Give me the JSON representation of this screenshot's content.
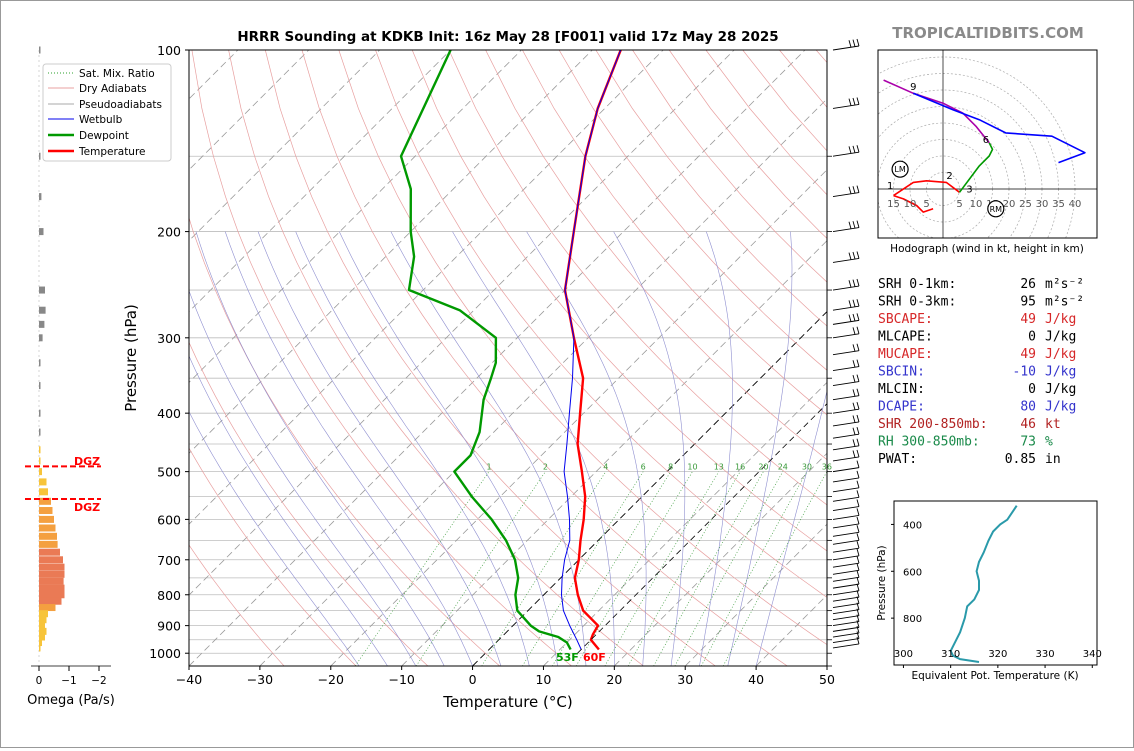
{
  "brand": "TROPICALTIDBITS.COM",
  "title": "HRRR Sounding at KDKB Init: 16z May 28 [F001] valid 17z May 28 2025",
  "skewt": {
    "xlabel": "Temperature (°C)",
    "ylabel": "Pressure (hPa)",
    "xticks": [
      -40,
      -30,
      -20,
      -10,
      0,
      10,
      20,
      30,
      40,
      50
    ],
    "yticks": [
      100,
      200,
      300,
      400,
      500,
      600,
      700,
      800,
      900,
      1000
    ],
    "mixing_ratio_labels": [
      "1",
      "2",
      "4",
      "6",
      "8",
      "10",
      "13",
      "16",
      "20",
      "24",
      "30",
      "36"
    ],
    "surface_dewpoint_label": "53F",
    "surface_temp_label": "60F",
    "legend": [
      "Sat. Mix. Ratio",
      "Dry Adiabats",
      "Pseudoadiabats",
      "Wetbulb",
      "Dewpoint",
      "Temperature"
    ]
  },
  "omega": {
    "xlabel": "Omega (Pa/s)",
    "xticks": [
      "0",
      "−1",
      "−2"
    ],
    "dgz_label": "DGZ"
  },
  "hodograph": {
    "caption": "Hodograph (wind in kt, height in km)",
    "ring_labels": [
      "15",
      "10",
      "5",
      "5",
      "10",
      "15",
      "20",
      "25",
      "30",
      "35",
      "40"
    ],
    "height_labels": [
      "1",
      "2",
      "3",
      "6",
      "9"
    ],
    "lm": "LM",
    "rm": "RM"
  },
  "indices": [
    {
      "label": "SRH 0-1km:",
      "value": "26",
      "unit": "m²s⁻²",
      "color": "#000000"
    },
    {
      "label": "SRH 0-3km:",
      "value": "95",
      "unit": "m²s⁻²",
      "color": "#000000"
    },
    {
      "label": "SBCAPE:",
      "value": "49",
      "unit": "J/kg",
      "color": "#d62728"
    },
    {
      "label": "MLCAPE:",
      "value": "0",
      "unit": "J/kg",
      "color": "#000000"
    },
    {
      "label": "MUCAPE:",
      "value": "49",
      "unit": "J/kg",
      "color": "#d62728"
    },
    {
      "label": "SBCIN:",
      "value": "-10",
      "unit": "J/kg",
      "color": "#3333cc"
    },
    {
      "label": "MLCIN:",
      "value": "0",
      "unit": "J/kg",
      "color": "#000000"
    },
    {
      "label": "DCAPE:",
      "value": "80",
      "unit": "J/kg",
      "color": "#3333cc"
    },
    {
      "label": "SHR 200-850mb:",
      "value": "46",
      "unit": "kt",
      "color": "#b22222"
    },
    {
      "label": "RH 300-850mb:",
      "value": "73",
      "unit": "%",
      "color": "#1a8a4a"
    },
    {
      "label": "PWAT:",
      "value": "0.85",
      "unit": "in",
      "color": "#000000"
    }
  ],
  "theta_e": {
    "ylabel": "Pressure (hPa)",
    "xlabel": "Equivalent Pot. Temperature (K)",
    "xticks": [
      "300",
      "310",
      "320",
      "330",
      "340"
    ],
    "yticks": [
      "400",
      "600",
      "800"
    ]
  },
  "chart_data": [
    {
      "type": "line",
      "title": "HRRR Sounding at KDKB Init: 16z May 28 [F001] valid 17z May 28 2025",
      "xlabel": "Temperature (°C)",
      "ylabel": "Pressure (hPa)",
      "xlim": [
        -40,
        50
      ],
      "ylim": [
        1050,
        100
      ],
      "yscale": "log",
      "skew": "isotherms skewed 45°",
      "legend_position": "top-left",
      "series": [
        {
          "name": "Temperature",
          "color": "#ff0000",
          "points": [
            [
              986,
              15.5
            ],
            [
              950,
              13
            ],
            [
              930,
              12.5
            ],
            [
              900,
              12
            ],
            [
              870,
              9.5
            ],
            [
              850,
              7.8
            ],
            [
              800,
              4.8
            ],
            [
              750,
              2
            ],
            [
              700,
              0
            ],
            [
              650,
              -2.5
            ],
            [
              600,
              -5
            ],
            [
              550,
              -8
            ],
            [
              500,
              -12
            ],
            [
              450,
              -16.5
            ],
            [
              400,
              -20.5
            ],
            [
              350,
              -25
            ],
            [
              300,
              -32
            ],
            [
              250,
              -40
            ],
            [
              200,
              -47
            ],
            [
              150,
              -56
            ],
            [
              125,
              -61
            ],
            [
              100,
              -66
            ]
          ]
        },
        {
          "name": "Dewpoint",
          "color": "#009900",
          "points": [
            [
              986,
              11.5
            ],
            [
              960,
              10
            ],
            [
              940,
              8
            ],
            [
              920,
              4.5
            ],
            [
              900,
              2.5
            ],
            [
              850,
              -1.5
            ],
            [
              800,
              -4
            ],
            [
              750,
              -6
            ],
            [
              700,
              -9
            ],
            [
              650,
              -13
            ],
            [
              600,
              -18
            ],
            [
              550,
              -24
            ],
            [
              500,
              -30
            ],
            [
              470,
              -30
            ],
            [
              430,
              -32
            ],
            [
              380,
              -36
            ],
            [
              350,
              -38
            ],
            [
              330,
              -39.5
            ],
            [
              300,
              -43
            ],
            [
              270,
              -52
            ],
            [
              250,
              -62
            ],
            [
              220,
              -66
            ],
            [
              200,
              -70
            ],
            [
              170,
              -76
            ],
            [
              150,
              -82
            ],
            [
              100,
              -90
            ]
          ]
        },
        {
          "name": "Wetbulb",
          "color": "#0000ee",
          "points": [
            [
              986,
              13
            ],
            [
              950,
              11
            ],
            [
              900,
              8
            ],
            [
              850,
              5
            ],
            [
              800,
              2.5
            ],
            [
              750,
              0.2
            ],
            [
              700,
              -2
            ],
            [
              650,
              -4
            ],
            [
              600,
              -7
            ],
            [
              550,
              -10.5
            ],
            [
              500,
              -14.5
            ],
            [
              450,
              -18
            ],
            [
              400,
              -22
            ],
            [
              350,
              -26.5
            ],
            [
              300,
              -32
            ],
            [
              250,
              -40
            ],
            [
              200,
              -47
            ],
            [
              150,
              -56
            ],
            [
              125,
              -61
            ],
            [
              100,
              -66
            ]
          ]
        }
      ]
    },
    {
      "type": "bar",
      "title": "",
      "xlabel": "Omega (Pa/s)",
      "ylabel": "Pressure (hPa)",
      "xlim": [
        0,
        -2
      ],
      "orientation": "horizontal",
      "dgz_bounds_hPa": [
        490,
        555
      ],
      "pressures": [
        100,
        150,
        175,
        200,
        250,
        270,
        285,
        300,
        330,
        360,
        400,
        430,
        460,
        480,
        500,
        520,
        540,
        560,
        580,
        600,
        620,
        640,
        660,
        680,
        700,
        720,
        740,
        760,
        780,
        800,
        820,
        840,
        860,
        880,
        900,
        920,
        940,
        960,
        980
      ],
      "values": [
        0.0,
        -0.05,
        -0.08,
        -0.15,
        -0.2,
        -0.22,
        -0.18,
        -0.12,
        -0.05,
        -0.05,
        -0.05,
        0.0,
        0.0,
        -0.05,
        -0.1,
        -0.25,
        -0.3,
        -0.4,
        -0.45,
        -0.5,
        -0.55,
        -0.6,
        -0.62,
        -0.7,
        -0.8,
        -0.85,
        -0.85,
        -0.82,
        -0.85,
        -0.85,
        -0.75,
        -0.55,
        -0.3,
        -0.25,
        -0.2,
        -0.25,
        -0.2,
        -0.1,
        -0.05
      ]
    },
    {
      "type": "line",
      "title": "Hodograph (wind in kt, height in km)",
      "xlabel": "",
      "ylabel": "",
      "rings_kt": [
        5,
        10,
        15,
        20,
        25,
        30,
        35,
        40
      ],
      "series": [
        {
          "name": "0-1 km",
          "color": "#ff0000",
          "points": [
            [
              -3,
              -6
            ],
            [
              -6,
              -7
            ],
            [
              -8,
              -5
            ],
            [
              -12,
              -3
            ],
            [
              -15,
              -2
            ]
          ]
        },
        {
          "name": "1-3 km",
          "color": "#ff0000",
          "points": [
            [
              -15,
              -2
            ],
            [
              -9,
              2
            ],
            [
              -5,
              2.5
            ],
            [
              1,
              2
            ],
            [
              5,
              -1
            ]
          ]
        },
        {
          "name": "3-6 km",
          "color": "#009900",
          "points": [
            [
              5,
              -1
            ],
            [
              8,
              3
            ],
            [
              11,
              7
            ],
            [
              14,
              10
            ],
            [
              15,
              12
            ],
            [
              14,
              14
            ]
          ]
        },
        {
          "name": "6-9 km",
          "color": "#aa00aa",
          "points": [
            [
              14,
              14
            ],
            [
              10,
              19
            ],
            [
              6,
              23
            ],
            [
              0,
              26
            ],
            [
              -9,
              29
            ],
            [
              -18,
              33
            ]
          ]
        },
        {
          "name": "9+ km",
          "color": "#0000ff",
          "points": [
            [
              -9,
              29
            ],
            [
              3,
              24
            ],
            [
              11,
              21
            ],
            [
              19,
              17
            ],
            [
              33,
              16
            ],
            [
              43,
              11
            ],
            [
              35,
              8
            ]
          ]
        }
      ],
      "markers": {
        "LM": [
          -13,
          6
        ],
        "RM": [
          16,
          -6
        ]
      }
    },
    {
      "type": "line",
      "title": "",
      "xlabel": "Equivalent Pot. Temperature (K)",
      "ylabel": "Pressure (hPa)",
      "xlim": [
        298,
        341
      ],
      "ylim": [
        1000,
        300
      ],
      "series": [
        {
          "name": "Equivalent Pot. Temperature",
          "color": "#2a9aaa",
          "points": [
            [
              987,
              316
            ],
            [
              975,
              312
            ],
            [
              960,
              310.5
            ],
            [
              940,
              310
            ],
            [
              920,
              310.5
            ],
            [
              900,
              311
            ],
            [
              860,
              312
            ],
            [
              800,
              313
            ],
            [
              750,
              313.5
            ],
            [
              720,
              315
            ],
            [
              680,
              316
            ],
            [
              640,
              316
            ],
            [
              600,
              315.5
            ],
            [
              560,
              316
            ],
            [
              520,
              317
            ],
            [
              470,
              318
            ],
            [
              430,
              319
            ],
            [
              400,
              320.5
            ],
            [
              380,
              322
            ],
            [
              350,
              323
            ],
            [
              320,
              324
            ]
          ]
        }
      ]
    }
  ]
}
